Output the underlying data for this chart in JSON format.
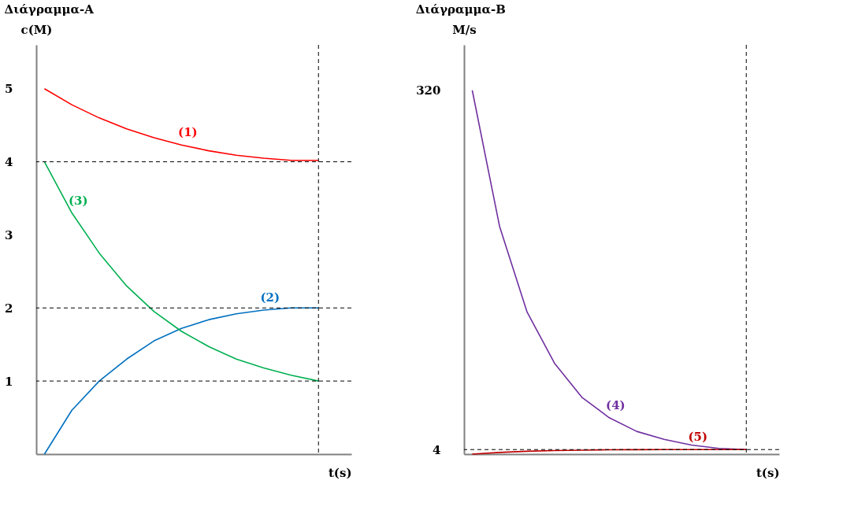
{
  "chart_data": [
    {
      "type": "line",
      "title": "Διάγραμμα-A",
      "xlabel": "t(s)",
      "ylabel": "c(M)",
      "categories": [
        null,
        null,
        null,
        null,
        null,
        null,
        null,
        null,
        null,
        null,
        null
      ],
      "ylim": [
        0,
        5.6
      ],
      "yticks": [
        1,
        2,
        3,
        4,
        5
      ],
      "grid": false,
      "legend": false,
      "marker": "none",
      "line_style": "solid",
      "series": [
        {
          "name": "(1)",
          "color": "#ff0000",
          "values": [
            5,
            4.78,
            4.6,
            4.45,
            4.33,
            4.23,
            4.15,
            4.09,
            4.05,
            4.02,
            4.02
          ]
        },
        {
          "name": "(2)",
          "color": "#0070c0",
          "values": [
            0,
            0.6,
            1.0,
            1.3,
            1.55,
            1.72,
            1.84,
            1.92,
            1.97,
            2.0,
            2.0
          ]
        },
        {
          "name": "(3)",
          "color": "#00b050",
          "values": [
            4,
            3.3,
            2.75,
            2.3,
            1.95,
            1.68,
            1.47,
            1.3,
            1.18,
            1.08,
            1.0
          ]
        }
      ],
      "ref_lines": [
        {
          "axis": "y",
          "value": 4,
          "label": null,
          "line_style": "dashed",
          "color": "#000000"
        },
        {
          "axis": "y",
          "value": 2,
          "label": null,
          "line_style": "dashed",
          "color": "#000000"
        },
        {
          "axis": "y",
          "value": 1,
          "label": null,
          "line_style": "dashed",
          "color": "#000000"
        },
        {
          "axis": "x",
          "value": null,
          "label": null,
          "line_style": "dashed",
          "color": "#000000"
        }
      ]
    },
    {
      "type": "line",
      "title": "Διάγραμμα-B",
      "xlabel": "t(s)",
      "ylabel": "M/s",
      "categories": [
        null,
        null,
        null,
        null,
        null,
        null,
        null,
        null,
        null,
        null,
        null
      ],
      "ylim": [
        0,
        360
      ],
      "yticks": [
        4,
        320
      ],
      "grid": false,
      "legend": false,
      "marker": "none",
      "line_style": "solid",
      "series": [
        {
          "name": "(4)",
          "color": "#7030a0",
          "values": [
            320,
            200,
            125,
            80,
            50,
            32,
            20,
            13,
            8,
            5,
            4
          ]
        },
        {
          "name": "(5)",
          "color": "#c00000",
          "values": [
            0,
            1.5,
            2.5,
            3.1,
            3.5,
            3.8,
            3.9,
            4.0,
            4.0,
            4.0,
            4.0
          ]
        }
      ],
      "ref_lines": [
        {
          "axis": "y",
          "value": 4,
          "label": null,
          "line_style": "dashed",
          "color": "#000000"
        },
        {
          "axis": "x",
          "value": null,
          "label": null,
          "line_style": "dashed",
          "color": "#000000"
        }
      ]
    }
  ]
}
